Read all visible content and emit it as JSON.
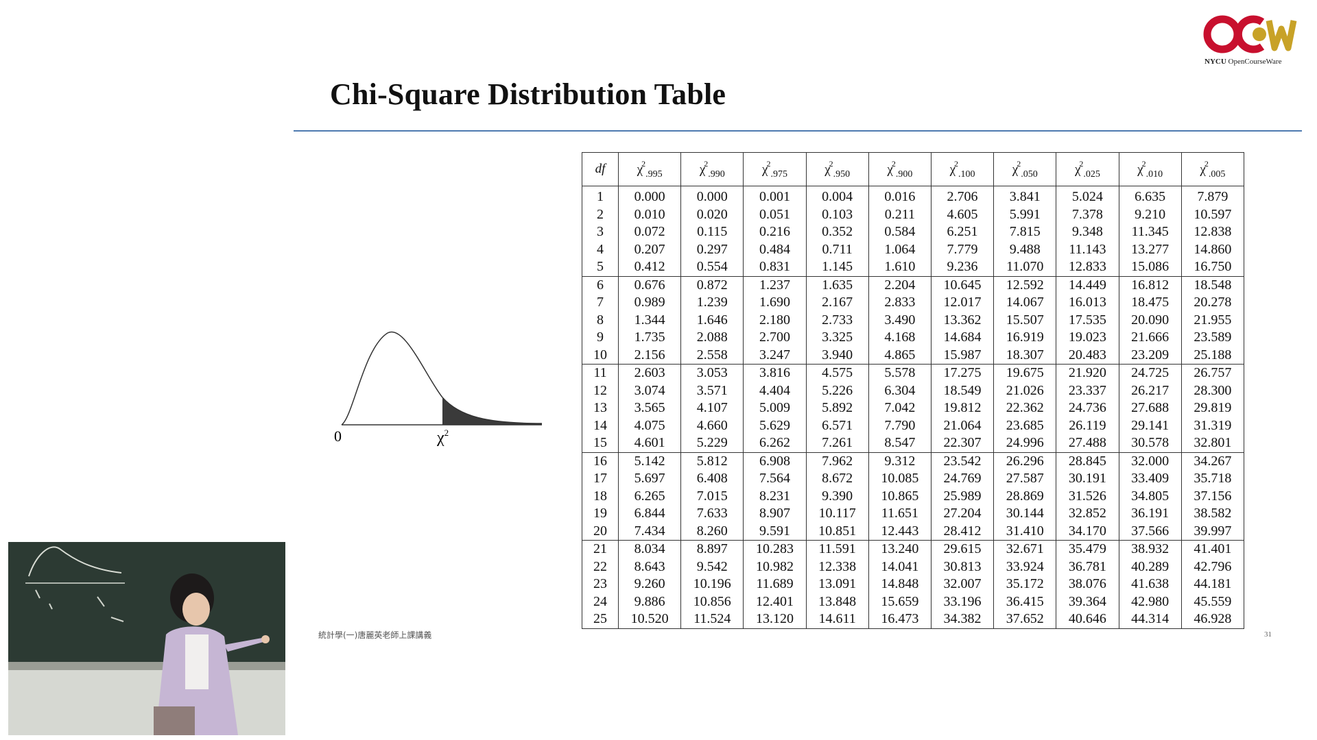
{
  "logo": {
    "brand": "NYCU",
    "text": "OpenCourseWare",
    "color_red": "#c8102e",
    "color_gold": "#c8a227"
  },
  "slide": {
    "title": "Chi-Square Distribution Table",
    "footer": "統計學(一)唐麗英老師上課講義",
    "page_number": "31",
    "rule_color": "#4d79b0"
  },
  "density_figure": {
    "zero_label": "0",
    "chi_label": "χ"
  },
  "table": {
    "df_header": "df",
    "columns": [
      ".995",
      ".990",
      ".975",
      ".950",
      ".900",
      ".100",
      ".050",
      ".025",
      ".010",
      ".005"
    ],
    "rows": [
      [
        "1",
        "0.000",
        "0.000",
        "0.001",
        "0.004",
        "0.016",
        "2.706",
        "3.841",
        "5.024",
        "6.635",
        "7.879"
      ],
      [
        "2",
        "0.010",
        "0.020",
        "0.051",
        "0.103",
        "0.211",
        "4.605",
        "5.991",
        "7.378",
        "9.210",
        "10.597"
      ],
      [
        "3",
        "0.072",
        "0.115",
        "0.216",
        "0.352",
        "0.584",
        "6.251",
        "7.815",
        "9.348",
        "11.345",
        "12.838"
      ],
      [
        "4",
        "0.207",
        "0.297",
        "0.484",
        "0.711",
        "1.064",
        "7.779",
        "9.488",
        "11.143",
        "13.277",
        "14.860"
      ],
      [
        "5",
        "0.412",
        "0.554",
        "0.831",
        "1.145",
        "1.610",
        "9.236",
        "11.070",
        "12.833",
        "15.086",
        "16.750"
      ],
      [
        "6",
        "0.676",
        "0.872",
        "1.237",
        "1.635",
        "2.204",
        "10.645",
        "12.592",
        "14.449",
        "16.812",
        "18.548"
      ],
      [
        "7",
        "0.989",
        "1.239",
        "1.690",
        "2.167",
        "2.833",
        "12.017",
        "14.067",
        "16.013",
        "18.475",
        "20.278"
      ],
      [
        "8",
        "1.344",
        "1.646",
        "2.180",
        "2.733",
        "3.490",
        "13.362",
        "15.507",
        "17.535",
        "20.090",
        "21.955"
      ],
      [
        "9",
        "1.735",
        "2.088",
        "2.700",
        "3.325",
        "4.168",
        "14.684",
        "16.919",
        "19.023",
        "21.666",
        "23.589"
      ],
      [
        "10",
        "2.156",
        "2.558",
        "3.247",
        "3.940",
        "4.865",
        "15.987",
        "18.307",
        "20.483",
        "23.209",
        "25.188"
      ],
      [
        "11",
        "2.603",
        "3.053",
        "3.816",
        "4.575",
        "5.578",
        "17.275",
        "19.675",
        "21.920",
        "24.725",
        "26.757"
      ],
      [
        "12",
        "3.074",
        "3.571",
        "4.404",
        "5.226",
        "6.304",
        "18.549",
        "21.026",
        "23.337",
        "26.217",
        "28.300"
      ],
      [
        "13",
        "3.565",
        "4.107",
        "5.009",
        "5.892",
        "7.042",
        "19.812",
        "22.362",
        "24.736",
        "27.688",
        "29.819"
      ],
      [
        "14",
        "4.075",
        "4.660",
        "5.629",
        "6.571",
        "7.790",
        "21.064",
        "23.685",
        "26.119",
        "29.141",
        "31.319"
      ],
      [
        "15",
        "4.601",
        "5.229",
        "6.262",
        "7.261",
        "8.547",
        "22.307",
        "24.996",
        "27.488",
        "30.578",
        "32.801"
      ],
      [
        "16",
        "5.142",
        "5.812",
        "6.908",
        "7.962",
        "9.312",
        "23.542",
        "26.296",
        "28.845",
        "32.000",
        "34.267"
      ],
      [
        "17",
        "5.697",
        "6.408",
        "7.564",
        "8.672",
        "10.085",
        "24.769",
        "27.587",
        "30.191",
        "33.409",
        "35.718"
      ],
      [
        "18",
        "6.265",
        "7.015",
        "8.231",
        "9.390",
        "10.865",
        "25.989",
        "28.869",
        "31.526",
        "34.805",
        "37.156"
      ],
      [
        "19",
        "6.844",
        "7.633",
        "8.907",
        "10.117",
        "11.651",
        "27.204",
        "30.144",
        "32.852",
        "36.191",
        "38.582"
      ],
      [
        "20",
        "7.434",
        "8.260",
        "9.591",
        "10.851",
        "12.443",
        "28.412",
        "31.410",
        "34.170",
        "37.566",
        "39.997"
      ],
      [
        "21",
        "8.034",
        "8.897",
        "10.283",
        "11.591",
        "13.240",
        "29.615",
        "32.671",
        "35.479",
        "38.932",
        "41.401"
      ],
      [
        "22",
        "8.643",
        "9.542",
        "10.982",
        "12.338",
        "14.041",
        "30.813",
        "33.924",
        "36.781",
        "40.289",
        "42.796"
      ],
      [
        "23",
        "9.260",
        "10.196",
        "11.689",
        "13.091",
        "14.848",
        "32.007",
        "35.172",
        "38.076",
        "41.638",
        "44.181"
      ],
      [
        "24",
        "9.886",
        "10.856",
        "12.401",
        "13.848",
        "15.659",
        "33.196",
        "36.415",
        "39.364",
        "42.980",
        "45.559"
      ],
      [
        "25",
        "10.520",
        "11.524",
        "13.120",
        "14.611",
        "16.473",
        "34.382",
        "37.652",
        "40.646",
        "44.314",
        "46.928"
      ]
    ]
  }
}
